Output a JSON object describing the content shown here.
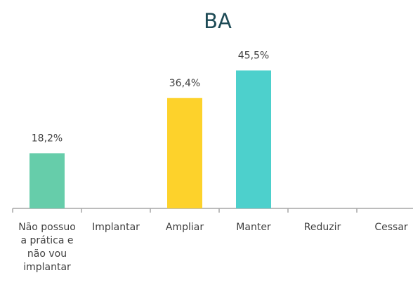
{
  "chart_data": {
    "type": "bar",
    "title": "BA",
    "categories": [
      "Não possuo a prática e não vou implantar",
      "Implantar",
      "Ampliar",
      "Manter",
      "Reduzir",
      "Cessar"
    ],
    "values": [
      18.2,
      null,
      36.4,
      45.5,
      null,
      null
    ],
    "value_labels": [
      "18,2%",
      null,
      "36,4%",
      "45,5%",
      null,
      null
    ],
    "colors": [
      "#66cdaa",
      null,
      "#fdd22b",
      "#4dd0cc",
      null,
      null
    ],
    "ylim": [
      0,
      50
    ]
  }
}
